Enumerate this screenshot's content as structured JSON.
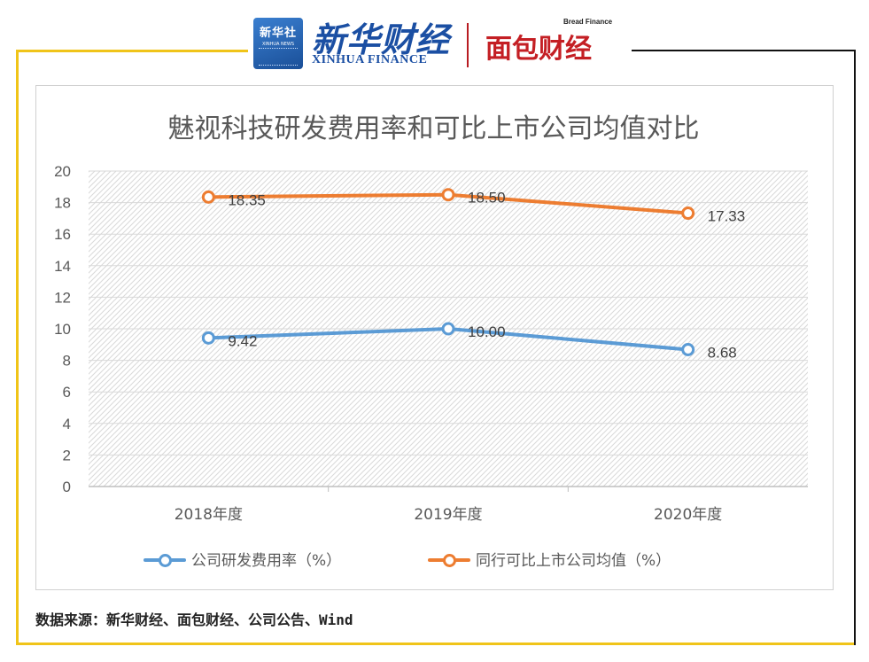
{
  "header": {
    "xinhua_box_cn": "新华社",
    "xinhua_box_en": "XINHUA NEWS",
    "xinhua_finance_cn": "新华财经",
    "xinhua_finance_en": "XINHUA FINANCE",
    "bread_finance_en": "Bread Finance",
    "bread_finance_cn": "面包财经"
  },
  "colors": {
    "frame_yellow": "#f0c419",
    "series_blue": "#5b9bd5",
    "series_orange": "#ed7d31"
  },
  "chart_data": {
    "type": "line",
    "title": "魅视科技研发费用率和可比上市公司均值对比",
    "categories": [
      "2018年度",
      "2019年度",
      "2020年度"
    ],
    "series": [
      {
        "name": "公司研发费用率（%）",
        "values": [
          9.42,
          10.0,
          8.68
        ],
        "labels": [
          "9.42",
          "10.00",
          "8.68"
        ],
        "color": "#5b9bd5"
      },
      {
        "name": "同行可比上市公司均值（%）",
        "values": [
          18.35,
          18.5,
          17.33
        ],
        "labels": [
          "18.35",
          "18.50",
          "17.33"
        ],
        "color": "#ed7d31"
      }
    ],
    "ylim": [
      0,
      20
    ],
    "yticks": [
      "0",
      "2",
      "4",
      "6",
      "8",
      "10",
      "12",
      "14",
      "16",
      "18",
      "20"
    ],
    "xlabel": "",
    "ylabel": "",
    "grid": true,
    "legend_position": "bottom"
  },
  "source": "数据来源：新华财经、面包财经、公司公告、Wind"
}
